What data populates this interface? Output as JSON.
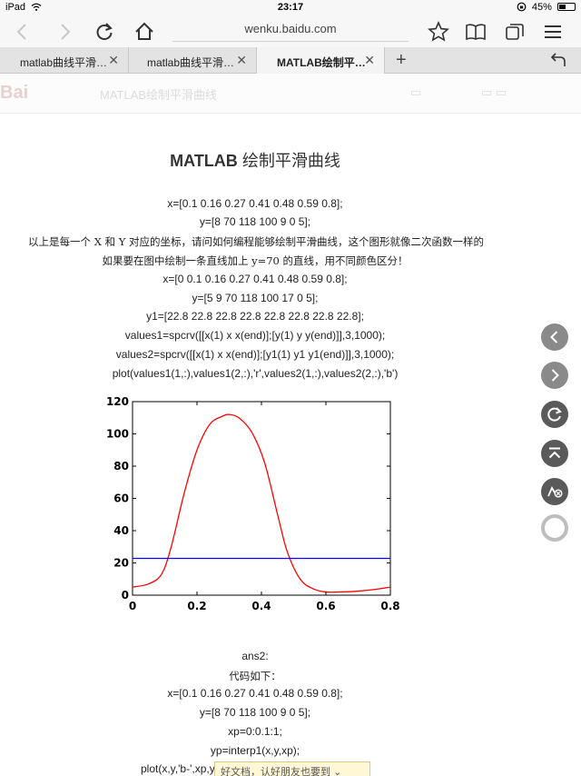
{
  "status": {
    "device": "iPad",
    "time": "23:17",
    "battery": "45%",
    "battery_level": 0.45
  },
  "browser": {
    "url": "wenku.baidu.com",
    "tabs": [
      {
        "label": "matlab曲线平滑…",
        "active": false
      },
      {
        "label": "matlab曲线平滑…",
        "active": false
      },
      {
        "label": "MATLAB绘制平…",
        "active": true
      }
    ]
  },
  "site_header": {
    "title": "MATLAB绘制平滑曲线"
  },
  "document": {
    "title_latin": "MATLAB",
    "title_cn": "绘制平滑曲线",
    "lines": [
      "x=[0.1 0.16 0.27 0.41 0.48 0.59 0.8];",
      "y=[8 70 118 100 9 0 5];",
      "以上是每一个 X 和 Y 对应的坐标，请问如何编程能够绘制平滑曲线，这个图形就像二次函数一样的",
      "如果要在图中绘制一条直线加上 y=70 的直线，用不同颜色区分！",
      "x=[0 0.1 0.16 0.27 0.41 0.48 0.59 0.8];",
      "y=[5 9 70 118 100 17 0 5];",
      "y1=[22.8 22.8 22.8 22.8 22.8 22.8 22.8 22.8];",
      "values1=spcrv([[x(1) x x(end)];[y(1) y y(end)]],3,1000);",
      "values2=spcrv([[x(1) x x(end)];[y1(1) y1 y1(end)]],3,1000);",
      "plot(values1(1,:),values1(2,:),'r',values2(1,:),values2(2,:),'b')"
    ],
    "lines2": [
      "ans2:",
      "代码如下：",
      "x=[0.1 0.16 0.27 0.41 0.48 0.59 0.8];",
      "y=[8 70 118 100 9 0 5];",
      "xp=0:0.1:1;",
      "yp=interp1(x,y,xp);",
      "plot(x,y,'b-',xp,y"
    ],
    "popup_text": "好文档，认好朋友也要到"
  },
  "chart_data": {
    "type": "line",
    "xlim": [
      0,
      0.8
    ],
    "ylim": [
      0,
      120
    ],
    "xticks": [
      "0",
      "0.2",
      "0.4",
      "0.6",
      "0.8"
    ],
    "yticks": [
      "0",
      "20",
      "40",
      "60",
      "80",
      "100",
      "120"
    ],
    "grid": false,
    "series": [
      {
        "color": "#ff0000",
        "x": [
          0,
          0.05,
          0.09,
          0.12,
          0.16,
          0.2,
          0.24,
          0.28,
          0.3,
          0.33,
          0.37,
          0.41,
          0.45,
          0.48,
          0.52,
          0.56,
          0.6,
          0.65,
          0.7,
          0.75,
          0.8
        ],
        "y": [
          5,
          7,
          13,
          30,
          63,
          90,
          106,
          111,
          112,
          110,
          101,
          82,
          50,
          27,
          10,
          4,
          2,
          2,
          2.5,
          3.5,
          5
        ]
      },
      {
        "color": "#0000ff",
        "x": [
          0,
          0.8
        ],
        "y": [
          22.8,
          22.8
        ]
      }
    ]
  }
}
